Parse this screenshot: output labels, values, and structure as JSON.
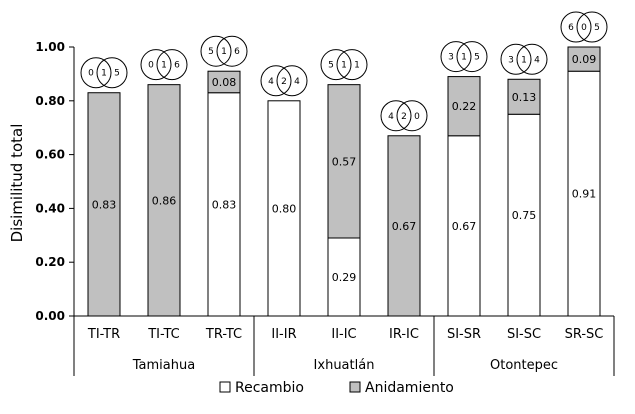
{
  "chart_data": {
    "type": "bar",
    "stacked": true,
    "ylabel": "Disimilitud total",
    "ylim": [
      0,
      1.0
    ],
    "yticks": [
      "0.00",
      "0.20",
      "0.40",
      "0.60",
      "0.80",
      "1.00"
    ],
    "categories": [
      "TI-TR",
      "TI-TC",
      "TR-TC",
      "II-IR",
      "II-IC",
      "IR-IC",
      "SI-SR",
      "SI-SC",
      "SR-SC"
    ],
    "groups": [
      {
        "name": "Tamiahua",
        "count": 3
      },
      {
        "name": "Ixhuatlán",
        "count": 3
      },
      {
        "name": "Otontepec",
        "count": 3
      }
    ],
    "series": [
      {
        "name": "Recambio",
        "color": "#ffffff",
        "values": [
          0,
          0,
          0.83,
          0.8,
          0.29,
          0,
          0.67,
          0.75,
          0.91
        ],
        "labels": [
          "",
          "",
          "0.83",
          "0.80",
          "0.29",
          "",
          "0.67",
          "0.75",
          "0.91"
        ]
      },
      {
        "name": "Anidamiento",
        "color": "#c0c0c0",
        "values": [
          0.83,
          0.86,
          0.08,
          0,
          0.57,
          0.67,
          0.22,
          0.13,
          0.09
        ],
        "labels": [
          "0.83",
          "0.86",
          "0.08",
          "",
          "0.57",
          "0.67",
          "0.22",
          "0.13",
          "0.09"
        ]
      }
    ],
    "venn": [
      [
        "0",
        "1",
        "5"
      ],
      [
        "0",
        "1",
        "6"
      ],
      [
        "5",
        "1",
        "6"
      ],
      [
        "4",
        "2",
        "4"
      ],
      [
        "5",
        "1",
        "1"
      ],
      [
        "4",
        "2",
        "0"
      ],
      [
        "3",
        "1",
        "5"
      ],
      [
        "3",
        "1",
        "4"
      ],
      [
        "6",
        "0",
        "5"
      ]
    ],
    "legend": [
      {
        "name": "Recambio",
        "color": "#ffffff"
      },
      {
        "name": "Anidamiento",
        "color": "#c0c0c0"
      }
    ]
  }
}
